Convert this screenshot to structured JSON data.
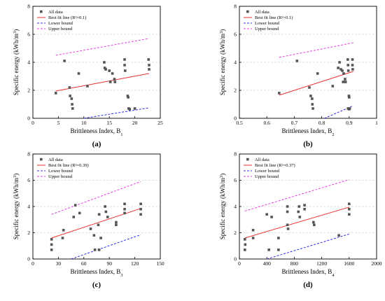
{
  "chart_data": [
    {
      "type": "scatter",
      "caption": "(a)",
      "xlabel": "Brittleness Index, B",
      "xlabel_sub": "1",
      "ylabel": "Specific energy (kWh/m",
      "ylabel_sup": "3",
      "ylabel_end": ")",
      "xlim": [
        0,
        25
      ],
      "ylim": [
        0,
        8
      ],
      "xticks": [
        0,
        5,
        10,
        15,
        20,
        25
      ],
      "yticks": [
        0,
        2,
        4,
        6,
        8
      ],
      "legend": [
        "All data",
        "Best fit line (R²=0.1)",
        "Lower bound",
        "Upper bound"
      ],
      "points": [
        [
          4.5,
          1.8
        ],
        [
          6.2,
          4.1
        ],
        [
          7.2,
          2.2
        ],
        [
          7.3,
          1.6
        ],
        [
          7.6,
          1.4
        ],
        [
          7.7,
          1.0
        ],
        [
          7.8,
          0.7
        ],
        [
          9,
          3.2
        ],
        [
          10.7,
          2.3
        ],
        [
          14,
          4.0
        ],
        [
          14.1,
          3.6
        ],
        [
          14.3,
          3.5
        ],
        [
          15,
          3.4
        ],
        [
          15.2,
          2.6
        ],
        [
          15.6,
          3.2
        ],
        [
          16,
          2.8
        ],
        [
          16.1,
          2.6
        ],
        [
          18,
          4.2
        ],
        [
          18,
          3.8
        ],
        [
          18.1,
          3.4
        ],
        [
          18.6,
          1.6
        ],
        [
          18.7,
          1.5
        ],
        [
          18.8,
          0.7
        ],
        [
          19,
          0.65
        ],
        [
          20,
          0.7
        ],
        [
          22.7,
          4.2
        ],
        [
          22.8,
          3.8
        ],
        [
          22.8,
          3.5
        ]
      ],
      "best_fit": [
        [
          4.5,
          1.95
        ],
        [
          22.8,
          3.2
        ]
      ],
      "lower": [
        [
          10,
          0
        ],
        [
          22.8,
          0.75
        ]
      ],
      "upper": [
        [
          4.5,
          4.5
        ],
        [
          22.8,
          5.7
        ]
      ]
    },
    {
      "type": "scatter",
      "caption": "(b)",
      "xlabel": "Brittleness Index, B",
      "xlabel_sub": "2",
      "ylabel": "Specific energy (kWh/m",
      "ylabel_sup": "3",
      "ylabel_end": ")",
      "xlim": [
        0.5,
        1.0
      ],
      "ylim": [
        0,
        8
      ],
      "xticks": [
        0.5,
        0.6,
        0.7,
        0.8,
        0.9,
        1.0
      ],
      "yticks": [
        0,
        2,
        4,
        6,
        8
      ],
      "legend": [
        "All data",
        "Best fit line (R²=0.1)",
        "Lower bound",
        "Upper bound"
      ],
      "points": [
        [
          0.645,
          1.8
        ],
        [
          0.71,
          4.1
        ],
        [
          0.755,
          2.2
        ],
        [
          0.76,
          1.6
        ],
        [
          0.765,
          1.4
        ],
        [
          0.766,
          1.0
        ],
        [
          0.768,
          0.7
        ],
        [
          0.785,
          3.2
        ],
        [
          0.84,
          2.3
        ],
        [
          0.86,
          3.6
        ],
        [
          0.865,
          4.0
        ],
        [
          0.87,
          3.5
        ],
        [
          0.875,
          3.4
        ],
        [
          0.878,
          2.6
        ],
        [
          0.88,
          3.2
        ],
        [
          0.885,
          2.8
        ],
        [
          0.887,
          2.6
        ],
        [
          0.895,
          4.2
        ],
        [
          0.896,
          3.8
        ],
        [
          0.897,
          3.4
        ],
        [
          0.899,
          1.6
        ],
        [
          0.9,
          1.5
        ],
        [
          0.896,
          0.7
        ],
        [
          0.9,
          0.65
        ],
        [
          0.902,
          0.7
        ],
        [
          0.912,
          4.2
        ],
        [
          0.912,
          3.8
        ],
        [
          0.913,
          3.5
        ]
      ],
      "best_fit": [
        [
          0.645,
          1.65
        ],
        [
          0.915,
          3.35
        ]
      ],
      "lower": [
        [
          0.81,
          0
        ],
        [
          0.915,
          0.9
        ]
      ],
      "upper": [
        [
          0.645,
          4.35
        ],
        [
          0.915,
          5.4
        ]
      ]
    },
    {
      "type": "scatter",
      "caption": "(c)",
      "xlabel": "Brittleness Index, B",
      "xlabel_sub": "3",
      "ylabel": "Specific energy (kWh/m",
      "ylabel_sup": "3",
      "ylabel_end": ")",
      "xlim": [
        0,
        150
      ],
      "ylim": [
        0,
        8
      ],
      "xticks": [
        0,
        30,
        60,
        90,
        120,
        150
      ],
      "yticks": [
        0,
        2,
        4,
        6,
        8
      ],
      "legend": [
        "All data",
        "Best fit line (R²=0.39)",
        "Lower bound",
        "Upper bound"
      ],
      "points": [
        [
          22,
          1.5
        ],
        [
          22,
          1.1
        ],
        [
          22,
          0.7
        ],
        [
          35,
          1.6
        ],
        [
          36,
          2.2
        ],
        [
          48,
          3.2
        ],
        [
          50,
          4.1
        ],
        [
          55,
          3.5
        ],
        [
          68,
          2.3
        ],
        [
          72,
          1.8
        ],
        [
          73,
          0.7
        ],
        [
          78,
          0.7
        ],
        [
          77,
          2.6
        ],
        [
          78,
          3.4
        ],
        [
          80,
          1.6
        ],
        [
          85,
          4.0
        ],
        [
          86,
          3.6
        ],
        [
          88,
          3.2
        ],
        [
          98,
          2.8
        ],
        [
          98,
          2.6
        ],
        [
          108,
          4.2
        ],
        [
          108,
          3.8
        ],
        [
          108,
          3.5
        ],
        [
          127,
          4.2
        ],
        [
          127,
          3.8
        ],
        [
          127,
          3.4
        ]
      ],
      "best_fit": [
        [
          22,
          1.6
        ],
        [
          127,
          3.85
        ]
      ],
      "lower": [
        [
          45,
          0
        ],
        [
          127,
          1.85
        ]
      ],
      "upper": [
        [
          22,
          3.4
        ],
        [
          127,
          5.9
        ]
      ]
    },
    {
      "type": "scatter",
      "caption": "(d)",
      "xlabel": "Brittleness Index, B",
      "xlabel_sub": "4",
      "ylabel": "Specific energy (kWh/m",
      "ylabel_sup": "3",
      "ylabel_end": ")",
      "xlim": [
        0,
        2000
      ],
      "ylim": [
        0,
        8
      ],
      "xticks": [
        0,
        400,
        800,
        1200,
        1600,
        2000
      ],
      "yticks": [
        0,
        2,
        4,
        6,
        8
      ],
      "legend": [
        "All data",
        "Best fit line (R²=0.37)",
        "Lower bound",
        "Upper bound"
      ],
      "points": [
        [
          80,
          1.5
        ],
        [
          85,
          1.1
        ],
        [
          80,
          0.7
        ],
        [
          200,
          1.6
        ],
        [
          200,
          2.2
        ],
        [
          400,
          3.4
        ],
        [
          470,
          3.2
        ],
        [
          430,
          0.7
        ],
        [
          570,
          1.6
        ],
        [
          570,
          0.7
        ],
        [
          700,
          4.0
        ],
        [
          700,
          3.6
        ],
        [
          700,
          2.6
        ],
        [
          710,
          2.3
        ],
        [
          860,
          3.6
        ],
        [
          870,
          4.0
        ],
        [
          880,
          3.2
        ],
        [
          950,
          3.8
        ],
        [
          950,
          4.1
        ],
        [
          1080,
          2.8
        ],
        [
          1090,
          2.6
        ],
        [
          1450,
          1.8
        ],
        [
          1600,
          4.2
        ],
        [
          1600,
          3.8
        ],
        [
          1600,
          3.4
        ]
      ],
      "best_fit": [
        [
          80,
          1.6
        ],
        [
          1600,
          3.95
        ]
      ],
      "lower": [
        [
          400,
          0
        ],
        [
          1600,
          1.9
        ]
      ],
      "upper": [
        [
          80,
          3.65
        ],
        [
          1600,
          6.05
        ]
      ]
    }
  ]
}
